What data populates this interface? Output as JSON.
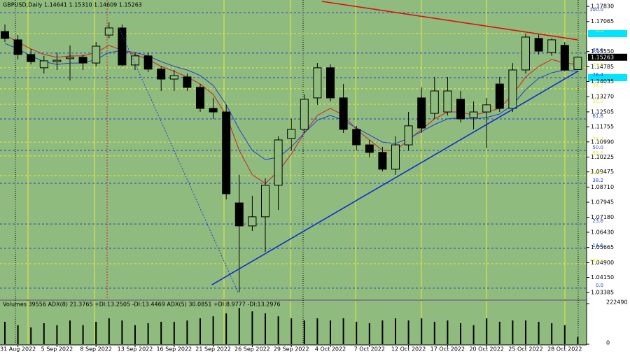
{
  "chart_data": {
    "type": "candlestick",
    "title": "GBPUSD,Daily  1.14641 1.15310 1.14609 1.15263",
    "categories": [
      null,
      "31 Aug 2022",
      null,
      null,
      "5 Sep 2022",
      null,
      null,
      "8 Sep 2022",
      null,
      null,
      "13 Sep 2022",
      null,
      null,
      "16 Sep 2022",
      null,
      null,
      "21 Sep 2022",
      null,
      null,
      "26 Sep 2022",
      null,
      null,
      "29 Sep 2022",
      null,
      null,
      "4 Oct 2022",
      null,
      null,
      "7 Oct 2022",
      null,
      null,
      "12 Oct 2022",
      null,
      null,
      "17 Oct 2022",
      null,
      null,
      "20 Oct 2022",
      null,
      null,
      "25 Oct 2022",
      null,
      null,
      "28 Oct 2022",
      null
    ],
    "open": [
      1.1656,
      1.1614,
      1.154,
      1.1473,
      1.1504,
      1.1519,
      1.1526,
      1.1497,
      1.1638,
      1.1674,
      1.1487,
      1.1533,
      1.1466,
      1.1416,
      1.1427,
      1.1374,
      1.1268,
      1.125,
      1.0791,
      1.0675,
      1.0721,
      1.088,
      1.1116,
      1.1162,
      1.1321,
      1.1473,
      1.1321,
      1.1162,
      1.1084,
      1.1046,
      1.0961,
      1.1084,
      1.1321,
      1.1243,
      1.125,
      1.1314,
      1.1222,
      1.125,
      1.1391,
      1.1268,
      1.1462,
      1.1621,
      1.155,
      1.1586,
      1.14641
    ],
    "high": [
      1.1691,
      1.1638,
      1.1568,
      1.1533,
      1.155,
      1.1586,
      1.154,
      1.1603,
      1.1702,
      1.1691,
      1.155,
      1.155,
      1.148,
      1.1462,
      1.1444,
      1.1391,
      1.1321,
      1.1286,
      1.0933,
      1.0827,
      1.0915,
      1.1127,
      1.1215,
      1.1338,
      1.1497,
      1.149,
      1.1391,
      1.118,
      1.1109,
      1.1074,
      1.1127,
      1.125,
      1.1374,
      1.1427,
      1.1427,
      1.1356,
      1.1303,
      1.1321,
      1.1427,
      1.1497,
      1.1646,
      1.1646,
      1.1621,
      1.1603,
      1.1531
    ],
    "low": [
      1.1603,
      1.1515,
      1.149,
      1.1444,
      1.1462,
      1.1409,
      1.1462,
      1.148,
      1.1621,
      1.148,
      1.1462,
      1.1451,
      1.1356,
      1.1356,
      1.1356,
      1.125,
      1.1215,
      1.0809,
      1.034,
      1.065,
      1.0544,
      1.0756,
      1.1056,
      1.1144,
      1.1286,
      1.1303,
      1.1144,
      1.1056,
      1.1021,
      1.095,
      1.0933,
      1.1056,
      1.1144,
      1.1215,
      1.1233,
      1.1197,
      1.1162,
      1.1067,
      1.125,
      1.125,
      1.1444,
      1.154,
      1.1533,
      1.1455,
      1.14609
    ],
    "close": [
      1.1621,
      1.154,
      1.1504,
      1.1508,
      1.1511,
      1.1526,
      1.1497,
      1.1582,
      1.1674,
      1.1487,
      1.1533,
      1.1466,
      1.1416,
      1.1434,
      1.1374,
      1.1268,
      1.125,
      1.0837,
      1.0675,
      1.0721,
      1.088,
      1.1109,
      1.1162,
      1.1314,
      1.1473,
      1.1321,
      1.1162,
      1.1084,
      1.1046,
      1.0961,
      1.1084,
      1.118,
      1.1169,
      1.1356,
      1.1356,
      1.1215,
      1.125,
      1.1286,
      1.1268,
      1.1462,
      1.1628,
      1.1557,
      1.1614,
      1.1462,
      1.15263
    ],
    "up_color": "#8fbb7e",
    "down_color": "#000000",
    "ylim": [
      1.0304,
      1.1815
    ],
    "yticks": [
      {
        "value": 1.1783,
        "label": "1.17830"
      },
      {
        "value": 1.17065,
        "label": "1.17065"
      },
      {
        "value": 1.1555,
        "label": "1.15550"
      },
      {
        "value": 1.14785,
        "label": "1.14785"
      },
      {
        "value": 1.14035,
        "label": "1.14035"
      },
      {
        "value": 1.1327,
        "label": "1.13270"
      },
      {
        "value": 1.12505,
        "label": "1.12505"
      },
      {
        "value": 1.11755,
        "label": "1.11755"
      },
      {
        "value": 1.1099,
        "label": "1.10990"
      },
      {
        "value": 1.10225,
        "label": "1.10225"
      },
      {
        "value": 1.09475,
        "label": "1.09475"
      },
      {
        "value": 1.0871,
        "label": "1.08710"
      },
      {
        "value": 1.07945,
        "label": "1.07945"
      },
      {
        "value": 1.0718,
        "label": "1.07180"
      },
      {
        "value": 1.0643,
        "label": "1.06430"
      },
      {
        "value": 1.05665,
        "label": "1.05665"
      },
      {
        "value": 1.049,
        "label": "1.04900"
      },
      {
        "value": 1.0415,
        "label": "1.04150"
      },
      {
        "value": 1.03385,
        "label": "1.03385"
      }
    ],
    "overlays": [
      {
        "color": "#d02020",
        "values": [
          1.1638,
          1.1603,
          1.1568,
          1.154,
          1.1526,
          1.1533,
          1.1533,
          1.155,
          1.1586,
          1.1561,
          1.154,
          1.1515,
          1.148,
          1.1455,
          1.1427,
          1.1391,
          1.1338,
          1.1233,
          1.1056,
          1.0933,
          1.089,
          1.095,
          1.1038,
          1.1144,
          1.1233,
          1.1268,
          1.1233,
          1.1162,
          1.1109,
          1.1056,
          1.1056,
          1.1109,
          1.1162,
          1.1215,
          1.125,
          1.125,
          1.1233,
          1.125,
          1.1268,
          1.1338,
          1.1427,
          1.148,
          1.1515,
          1.1497,
          1.149
        ]
      },
      {
        "color": "#2040d0",
        "values": [
          1.1596,
          1.1568,
          1.1533,
          1.1504,
          1.149,
          1.1497,
          1.1497,
          1.1515,
          1.155,
          1.1561,
          1.155,
          1.1533,
          1.1504,
          1.148,
          1.1462,
          1.1434,
          1.1384,
          1.1286,
          1.1162,
          1.1056,
          1.101,
          1.1021,
          1.1074,
          1.1144,
          1.1208,
          1.1233,
          1.1208,
          1.1169,
          1.1134,
          1.1098,
          1.1091,
          1.1116,
          1.1151,
          1.1187,
          1.1215,
          1.1222,
          1.1215,
          1.1222,
          1.124,
          1.1286,
          1.1363,
          1.142,
          1.1448,
          1.1462,
          1.1455
        ]
      }
    ],
    "trendlines": [
      {
        "color": "#e01010",
        "x": [
          24.35,
          44
        ],
        "values": [
          1.1808,
          1.1614
        ]
      },
      {
        "color": "#1030d0",
        "x": [
          15.9,
          44
        ],
        "values": [
          1.0378,
          1.1455
        ]
      },
      {
        "color": "#2040d0",
        "style": "dotted",
        "x": [
          8.76,
          17.9
        ],
        "values": [
          1.1674,
          1.034
        ]
      }
    ],
    "levels": [
      {
        "label": "100.0",
        "value": 1.1751,
        "color": "#2040d0"
      },
      {
        "label": "0.0",
        "value": 1.1646,
        "color": "#e8e840"
      },
      {
        "label": "88.6",
        "value": 1.1547,
        "color": "#2040d0"
      },
      {
        "label": "23.6",
        "value": 1.1473,
        "color": "#e8e840"
      },
      {
        "label": "76.4",
        "value": 1.1423,
        "color": "#2040d0"
      },
      {
        "label": "38.2",
        "value": 1.1367,
        "color": "#e8e840"
      },
      {
        "label": "50.0",
        "value": 1.1289,
        "color": "#e8e840"
      },
      {
        "label": "61.8",
        "value": 1.1215,
        "color": "#2040d0"
      },
      {
        "label": "76.4",
        "value": 1.1098,
        "color": "#e8e840"
      },
      {
        "label": "50.0",
        "value": 1.1056,
        "color": "#2040d0"
      },
      {
        "label": "88.6",
        "value": 1.1028,
        "color": "#e8e840"
      },
      {
        "label": "100.0",
        "value": 1.0929,
        "color": "#e8e840"
      },
      {
        "label": "38.2",
        "value": 1.089,
        "color": "#2040d0"
      },
      {
        "label": "23.6",
        "value": 1.0685,
        "color": "#2040d0"
      },
      {
        "label": "14.6",
        "value": 1.0562,
        "color": "#2040d0"
      },
      {
        "label": "161.8",
        "value": 1.0484,
        "color": "#e8e840"
      },
      {
        "label": "0.0",
        "value": 1.0361,
        "color": "#2040d0"
      }
    ],
    "volume": {
      "title": "Volumes 39556  ADX(8) 21.3765 +DI:13.2505 -DI:13.4469  ADX(5) 30.0851 +DI:8.9777 -DI:13.2976",
      "values": [
        123000,
        104000,
        92000,
        115000,
        104000,
        130000,
        104000,
        123000,
        142000,
        130000,
        104000,
        115000,
        123000,
        123000,
        130000,
        142000,
        153000,
        169000,
        199000,
        180000,
        169000,
        153000,
        142000,
        130000,
        142000,
        130000,
        142000,
        123000,
        115000,
        130000,
        142000,
        130000,
        142000,
        123000,
        130000,
        115000,
        104000,
        142000,
        123000,
        130000,
        130000,
        123000,
        115000,
        104000,
        39556
      ],
      "ylim": [
        0,
        222490
      ],
      "yticks": [
        0,
        222490
      ]
    }
  }
}
